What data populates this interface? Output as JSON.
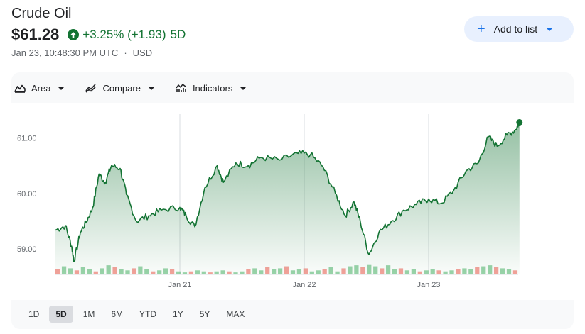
{
  "header": {
    "title": "Crude Oil",
    "price": "$61.28",
    "change": "+3.25% (+1.93)",
    "period": "5D",
    "timestamp": "Jan 23, 10:48:30 PM UTC",
    "separator": "·",
    "currency": "USD"
  },
  "actions": {
    "add_to_list": "Add to list"
  },
  "toolbar": {
    "area": "Area",
    "compare": "Compare",
    "indicators": "Indicators"
  },
  "ranges": [
    {
      "label": "1D",
      "active": false
    },
    {
      "label": "5D",
      "active": true
    },
    {
      "label": "1M",
      "active": false
    },
    {
      "label": "6M",
      "active": false
    },
    {
      "label": "YTD",
      "active": false
    },
    {
      "label": "1Y",
      "active": false
    },
    {
      "label": "5Y",
      "active": false
    },
    {
      "label": "MAX",
      "active": false
    }
  ],
  "colors": {
    "positive": "#137333",
    "accent": "#1a73e8",
    "volume_up": "#81c995",
    "volume_down": "#f28b82"
  },
  "chart_data": {
    "type": "area",
    "ylim": [
      58.9,
      61.35
    ],
    "yticks": [
      59.0,
      60.0,
      61.0
    ],
    "ytick_labels": [
      "59.00",
      "60.00",
      "61.00"
    ],
    "xlim": [
      0,
      5
    ],
    "day_dividers": [
      1,
      2,
      3
    ],
    "xtick_labels": [
      {
        "label": "Jan 21",
        "x": 1
      },
      {
        "label": "Jan 22",
        "x": 2
      },
      {
        "label": "Jan 23",
        "x": 3
      }
    ],
    "grid": false,
    "series": [
      {
        "points": [
          [
            0.0,
            59.34
          ],
          [
            0.08,
            59.42
          ],
          [
            0.13,
            59.05
          ],
          [
            0.15,
            58.78
          ],
          [
            0.2,
            59.3
          ],
          [
            0.25,
            59.5
          ],
          [
            0.3,
            59.75
          ],
          [
            0.35,
            60.35
          ],
          [
            0.4,
            60.2
          ],
          [
            0.45,
            60.5
          ],
          [
            0.52,
            60.45
          ],
          [
            0.57,
            59.98
          ],
          [
            0.65,
            59.5
          ],
          [
            0.75,
            59.6
          ],
          [
            0.85,
            59.7
          ],
          [
            1.0,
            59.75
          ],
          [
            1.05,
            59.6
          ],
          [
            1.12,
            59.4
          ],
          [
            1.2,
            60.1
          ],
          [
            1.3,
            60.5
          ],
          [
            1.35,
            60.2
          ],
          [
            1.45,
            60.55
          ],
          [
            1.55,
            60.5
          ],
          [
            1.65,
            60.65
          ],
          [
            1.8,
            60.6
          ],
          [
            1.95,
            60.72
          ],
          [
            2.05,
            60.7
          ],
          [
            2.15,
            60.48
          ],
          [
            2.25,
            60.0
          ],
          [
            2.33,
            59.6
          ],
          [
            2.4,
            59.85
          ],
          [
            2.45,
            59.5
          ],
          [
            2.52,
            58.9
          ],
          [
            2.6,
            59.3
          ],
          [
            2.7,
            59.5
          ],
          [
            2.8,
            59.7
          ],
          [
            2.9,
            59.8
          ],
          [
            3.0,
            59.9
          ],
          [
            3.1,
            59.82
          ],
          [
            3.2,
            60.05
          ],
          [
            3.3,
            60.4
          ],
          [
            3.4,
            60.55
          ],
          [
            3.48,
            61.02
          ],
          [
            3.55,
            60.85
          ],
          [
            3.63,
            61.05
          ],
          [
            3.7,
            61.15
          ],
          [
            3.73,
            61.28
          ]
        ]
      }
    ],
    "volume": {
      "note": "relative volume bars along the baseline",
      "values": [
        0.5,
        0.8,
        0.6,
        0.4,
        0.7,
        0.5,
        0.3,
        0.6,
        0.9,
        0.7,
        0.5,
        0.4,
        0.6,
        0.8,
        0.5,
        0.3,
        0.4,
        0.6,
        0.5,
        0.3,
        0.2,
        0.3,
        0.4,
        0.3,
        0.2,
        0.3,
        0.4,
        0.3,
        0.2,
        0.3,
        0.5,
        0.6,
        0.4,
        0.7,
        0.5,
        0.6,
        0.8,
        0.4,
        0.5,
        0.6,
        0.3,
        0.4,
        0.5,
        0.7,
        0.3,
        0.6,
        0.8,
        0.9,
        0.7,
        1.0,
        0.8,
        0.6,
        0.9,
        0.5,
        0.6,
        0.4,
        0.5,
        0.3,
        0.4,
        0.5,
        0.4,
        0.3,
        0.4,
        0.5,
        0.6,
        0.5,
        0.7,
        0.8,
        0.9,
        0.7,
        0.6,
        0.5,
        0.4
      ]
    }
  }
}
